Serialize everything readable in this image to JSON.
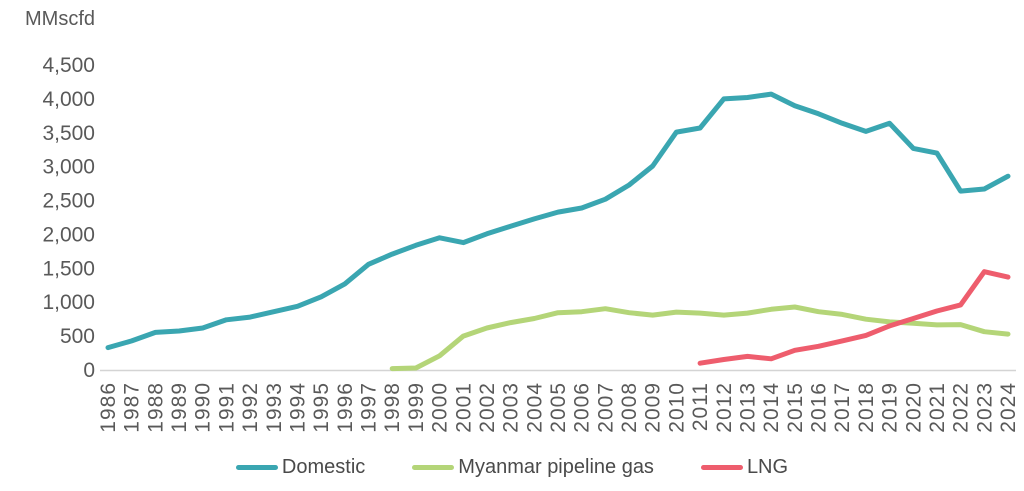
{
  "unit_label": "MMscfd",
  "legend": {
    "items": [
      {
        "label": "Domestic",
        "color": "#3aa6b1"
      },
      {
        "label": "Myanmar pipeline gas",
        "color": "#b4d578"
      },
      {
        "label": "LNG",
        "color": "#ee5d6d"
      }
    ]
  },
  "chart_data": {
    "type": "line",
    "title": "MMscfd",
    "xlabel": "",
    "ylabel": "MMscfd",
    "ylim": [
      0,
      4500
    ],
    "ytick_step": 500,
    "y_tick_labels": [
      "0",
      "500",
      "1,000",
      "1,500",
      "2,000",
      "2,500",
      "3,000",
      "3,500",
      "4,000",
      "4,500"
    ],
    "grid": false,
    "legend_position": "bottom",
    "x": [
      "1986",
      "1987",
      "1988",
      "1989",
      "1990",
      "1991",
      "1992",
      "1993",
      "1994",
      "1995",
      "1996",
      "1997",
      "1998",
      "1999",
      "2000",
      "2001",
      "2002",
      "2003",
      "2004",
      "2005",
      "2006",
      "2007",
      "2008",
      "2009",
      "2010",
      "2011",
      "2012",
      "2013",
      "2014",
      "2015",
      "2016",
      "2017",
      "2018",
      "2019",
      "2020",
      "2021",
      "2022",
      "2023",
      "2024"
    ],
    "series": [
      {
        "name": "Domestic",
        "color": "#3aa6b1",
        "values": [
          330,
          430,
          555,
          575,
          620,
          740,
          780,
          860,
          940,
          1080,
          1270,
          1560,
          1710,
          1840,
          1950,
          1880,
          2010,
          2120,
          2230,
          2330,
          2390,
          2520,
          2730,
          3010,
          3510,
          3570,
          4000,
          4020,
          4070,
          3900,
          3780,
          3640,
          3520,
          3640,
          3270,
          3200,
          2640,
          2670,
          2860
        ]
      },
      {
        "name": "Myanmar pipeline gas",
        "color": "#b4d578",
        "values": [
          null,
          null,
          null,
          null,
          null,
          null,
          null,
          null,
          null,
          null,
          null,
          null,
          20,
          30,
          210,
          500,
          620,
          700,
          760,
          845,
          860,
          905,
          845,
          810,
          855,
          840,
          810,
          840,
          895,
          930,
          860,
          820,
          750,
          710,
          690,
          665,
          670,
          565,
          530
        ]
      },
      {
        "name": "LNG",
        "color": "#ee5d6d",
        "values": [
          null,
          null,
          null,
          null,
          null,
          null,
          null,
          null,
          null,
          null,
          null,
          null,
          null,
          null,
          null,
          null,
          null,
          null,
          null,
          null,
          null,
          null,
          null,
          null,
          null,
          100,
          155,
          200,
          165,
          290,
          350,
          430,
          510,
          650,
          760,
          870,
          960,
          1450,
          1370
        ]
      }
    ]
  }
}
